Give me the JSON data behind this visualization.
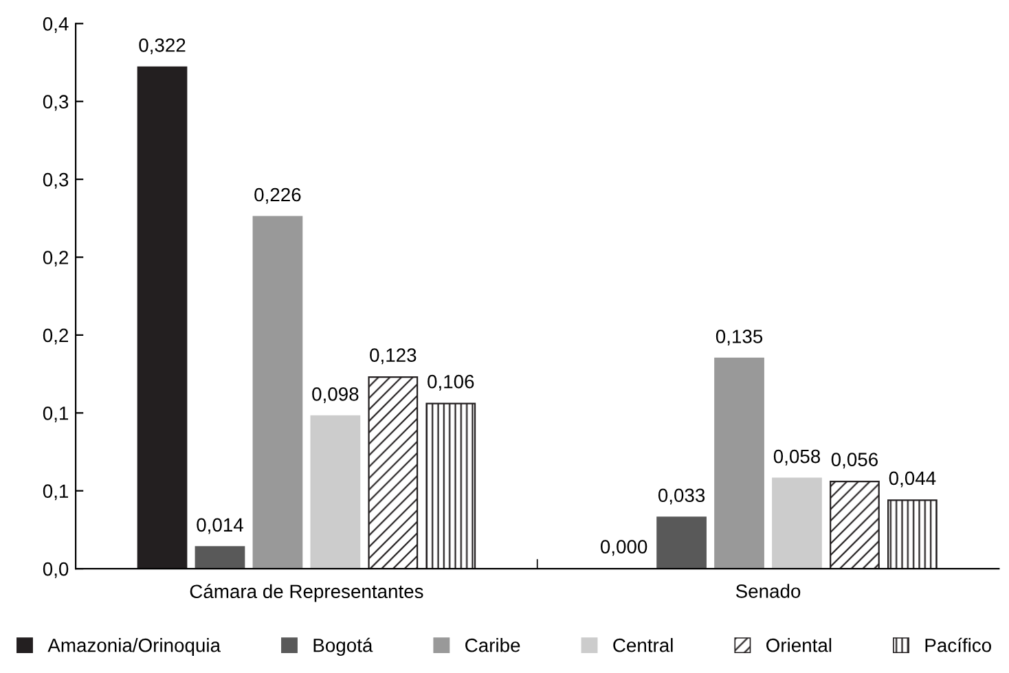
{
  "chart_data": {
    "type": "bar",
    "categories": [
      "Cámara de Representantes",
      "Senado"
    ],
    "series": [
      {
        "name": "Amazonia/Orinoquia",
        "color": "#231f20",
        "values": [
          0.322,
          0.0
        ],
        "value_labels": [
          "0,322",
          "0,000"
        ]
      },
      {
        "name": "Bogotá",
        "color": "#595959",
        "values": [
          0.014,
          0.033
        ],
        "value_labels": [
          "0,014",
          "0,033"
        ]
      },
      {
        "name": "Caribe",
        "color": "#999999",
        "values": [
          0.226,
          0.135
        ],
        "value_labels": [
          "0,226",
          "0,135"
        ]
      },
      {
        "name": "Central",
        "color": "#cccccc",
        "values": [
          0.098,
          0.058
        ],
        "value_labels": [
          "0,098",
          "0,058"
        ]
      },
      {
        "name": "Oriental",
        "color": "#231f20",
        "values": [
          0.123,
          0.056
        ],
        "value_labels": [
          "0,123",
          "0,056"
        ]
      },
      {
        "name": "Pacífico",
        "color": "#231f20",
        "values": [
          0.106,
          0.044
        ],
        "value_labels": [
          "0,106",
          "0,044"
        ]
      }
    ],
    "ylim": [
      0,
      0.35
    ],
    "yticks": [
      {
        "value": 0,
        "label": "0,0"
      },
      {
        "value": 0.05,
        "label": "0,1"
      },
      {
        "value": 0.1,
        "label": "0,1"
      },
      {
        "value": 0.15,
        "label": "0,2"
      },
      {
        "value": 0.2,
        "label": "0,2"
      },
      {
        "value": 0.25,
        "label": "0,3"
      },
      {
        "value": 0.3,
        "label": "0,3"
      },
      {
        "value": 0.35,
        "label": "0,4"
      }
    ],
    "grid": false,
    "legend": "bottom"
  }
}
